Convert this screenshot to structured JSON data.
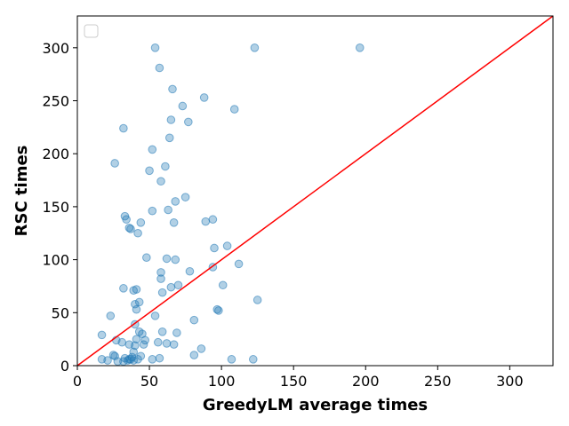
{
  "chart_data": {
    "type": "scatter",
    "xlabel": "GreedyLM average times",
    "ylabel": "RSC times",
    "xlim": [
      0,
      330
    ],
    "ylim": [
      0,
      330
    ],
    "xticks": [
      0,
      50,
      100,
      150,
      200,
      250,
      300
    ],
    "yticks": [
      0,
      50,
      100,
      150,
      200,
      250,
      300
    ],
    "grid": false,
    "legend": "upper-left, empty",
    "point_color": "#1f77b4",
    "line_color": "#ff0000",
    "reference_line": {
      "from": [
        0,
        0
      ],
      "to": [
        330,
        330
      ]
    },
    "series": [
      {
        "points": [
          [
            54,
            300
          ],
          [
            123,
            300
          ],
          [
            196,
            300
          ],
          [
            57,
            281
          ],
          [
            66,
            261
          ],
          [
            88,
            253
          ],
          [
            73,
            245
          ],
          [
            109,
            242
          ],
          [
            65,
            232
          ],
          [
            77,
            230
          ],
          [
            32,
            224
          ],
          [
            64,
            215
          ],
          [
            52,
            204
          ],
          [
            26,
            191
          ],
          [
            61,
            188
          ],
          [
            50,
            184
          ],
          [
            58,
            174
          ],
          [
            75,
            159
          ],
          [
            68,
            155
          ],
          [
            63,
            147
          ],
          [
            52,
            146
          ],
          [
            33,
            141
          ],
          [
            34,
            138
          ],
          [
            94,
            138
          ],
          [
            89,
            136
          ],
          [
            44,
            135
          ],
          [
            67,
            135
          ],
          [
            36,
            130
          ],
          [
            37,
            129
          ],
          [
            42,
            125
          ],
          [
            104,
            113
          ],
          [
            95,
            111
          ],
          [
            48,
            102
          ],
          [
            62,
            101
          ],
          [
            68,
            100
          ],
          [
            112,
            96
          ],
          [
            94,
            93
          ],
          [
            78,
            89
          ],
          [
            58,
            88
          ],
          [
            58,
            82
          ],
          [
            70,
            76
          ],
          [
            101,
            76
          ],
          [
            32,
            73
          ],
          [
            65,
            74
          ],
          [
            39,
            71
          ],
          [
            41,
            72
          ],
          [
            59,
            69
          ],
          [
            125,
            62
          ],
          [
            43,
            60
          ],
          [
            40,
            58
          ],
          [
            41,
            53
          ],
          [
            97,
            53
          ],
          [
            98,
            52
          ],
          [
            23,
            47
          ],
          [
            54,
            47
          ],
          [
            81,
            43
          ],
          [
            40,
            39
          ],
          [
            59,
            32
          ],
          [
            43,
            32
          ],
          [
            45,
            30
          ],
          [
            69,
            31
          ],
          [
            17,
            29
          ],
          [
            41,
            25
          ],
          [
            27,
            24
          ],
          [
            47,
            24
          ],
          [
            31,
            22
          ],
          [
            56,
            22
          ],
          [
            62,
            21
          ],
          [
            36,
            20
          ],
          [
            46,
            20
          ],
          [
            67,
            20
          ],
          [
            40,
            19
          ],
          [
            86,
            16
          ],
          [
            39,
            13
          ],
          [
            25,
            10
          ],
          [
            26,
            9
          ],
          [
            44,
            9
          ],
          [
            81,
            10
          ],
          [
            38,
            8
          ],
          [
            33,
            7
          ],
          [
            36,
            6
          ],
          [
            57,
            7
          ],
          [
            107,
            6
          ],
          [
            122,
            6
          ],
          [
            17,
            6
          ],
          [
            21,
            5
          ],
          [
            28,
            4
          ],
          [
            32,
            4
          ],
          [
            35,
            5
          ],
          [
            37,
            6
          ],
          [
            39,
            5
          ],
          [
            42,
            6
          ],
          [
            52,
            6
          ]
        ]
      }
    ]
  }
}
